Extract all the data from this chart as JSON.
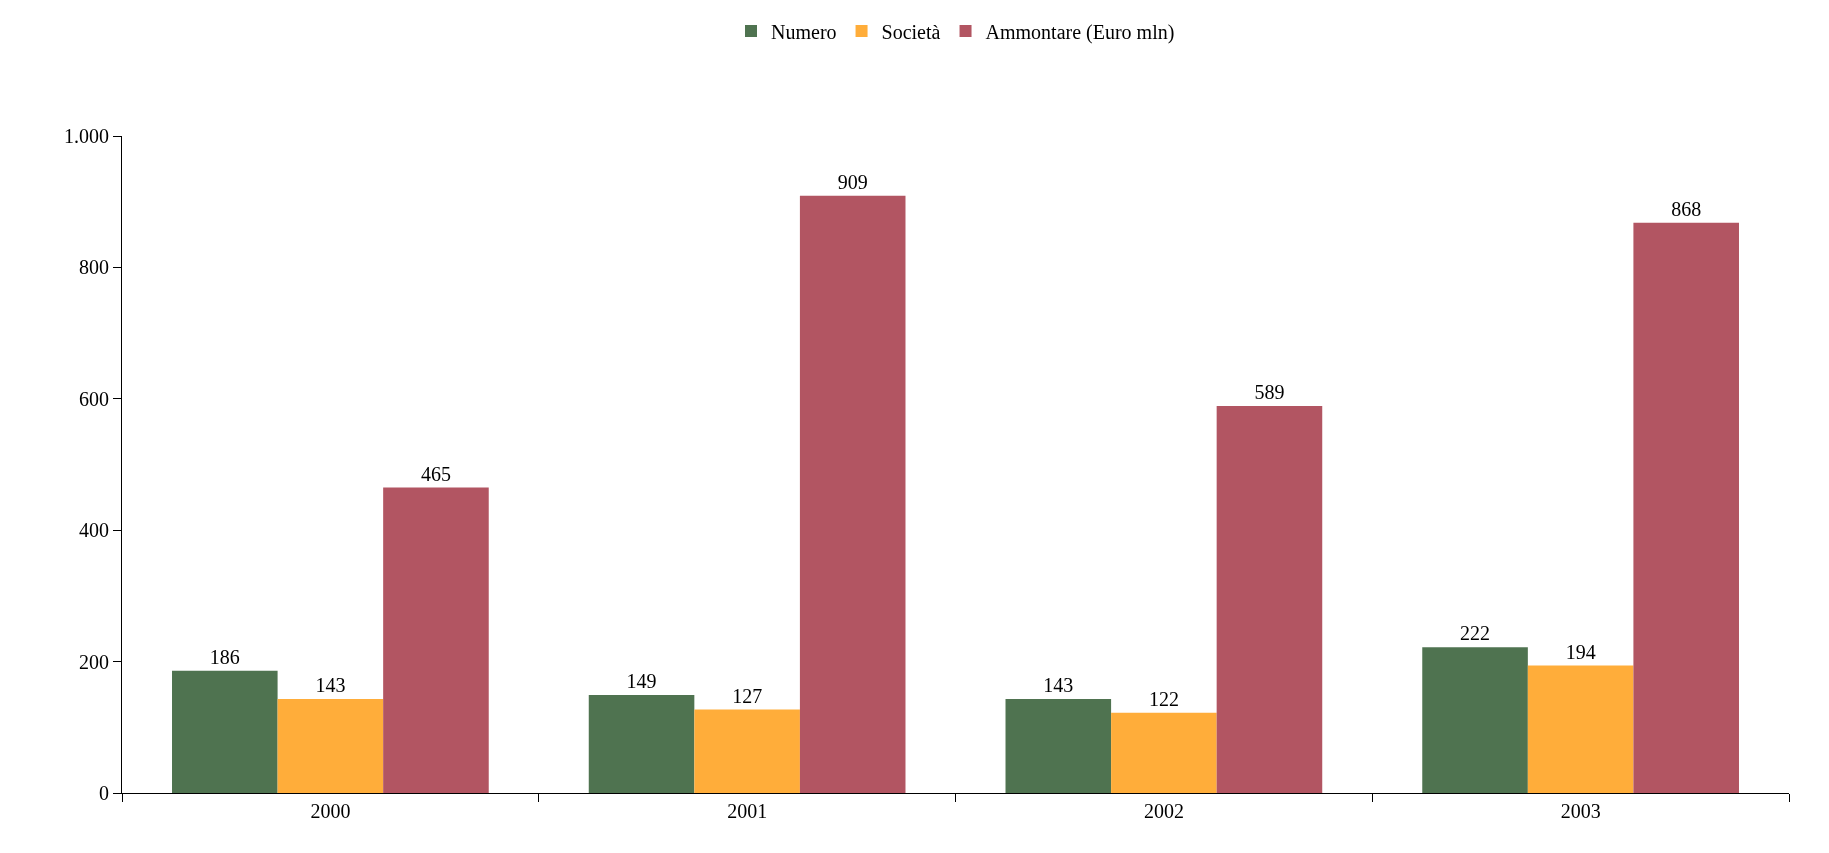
{
  "chart_data": {
    "type": "bar",
    "categories": [
      "2000",
      "2001",
      "2002",
      "2003"
    ],
    "series": [
      {
        "name": "Numero",
        "color": "#4f7350",
        "values": [
          186,
          149,
          143,
          222
        ]
      },
      {
        "name": "Società",
        "color": "#ffad3a",
        "values": [
          143,
          127,
          122,
          194
        ]
      },
      {
        "name": "Ammontare (Euro mln)",
        "color": "#b25562",
        "values": [
          465,
          909,
          589,
          868
        ]
      }
    ],
    "ylim": [
      0,
      1000
    ],
    "yticks": [
      0,
      200,
      400,
      600,
      800,
      {
        "value": 1000,
        "label": "1.000"
      }
    ],
    "data_labels": true,
    "legend": "top"
  }
}
